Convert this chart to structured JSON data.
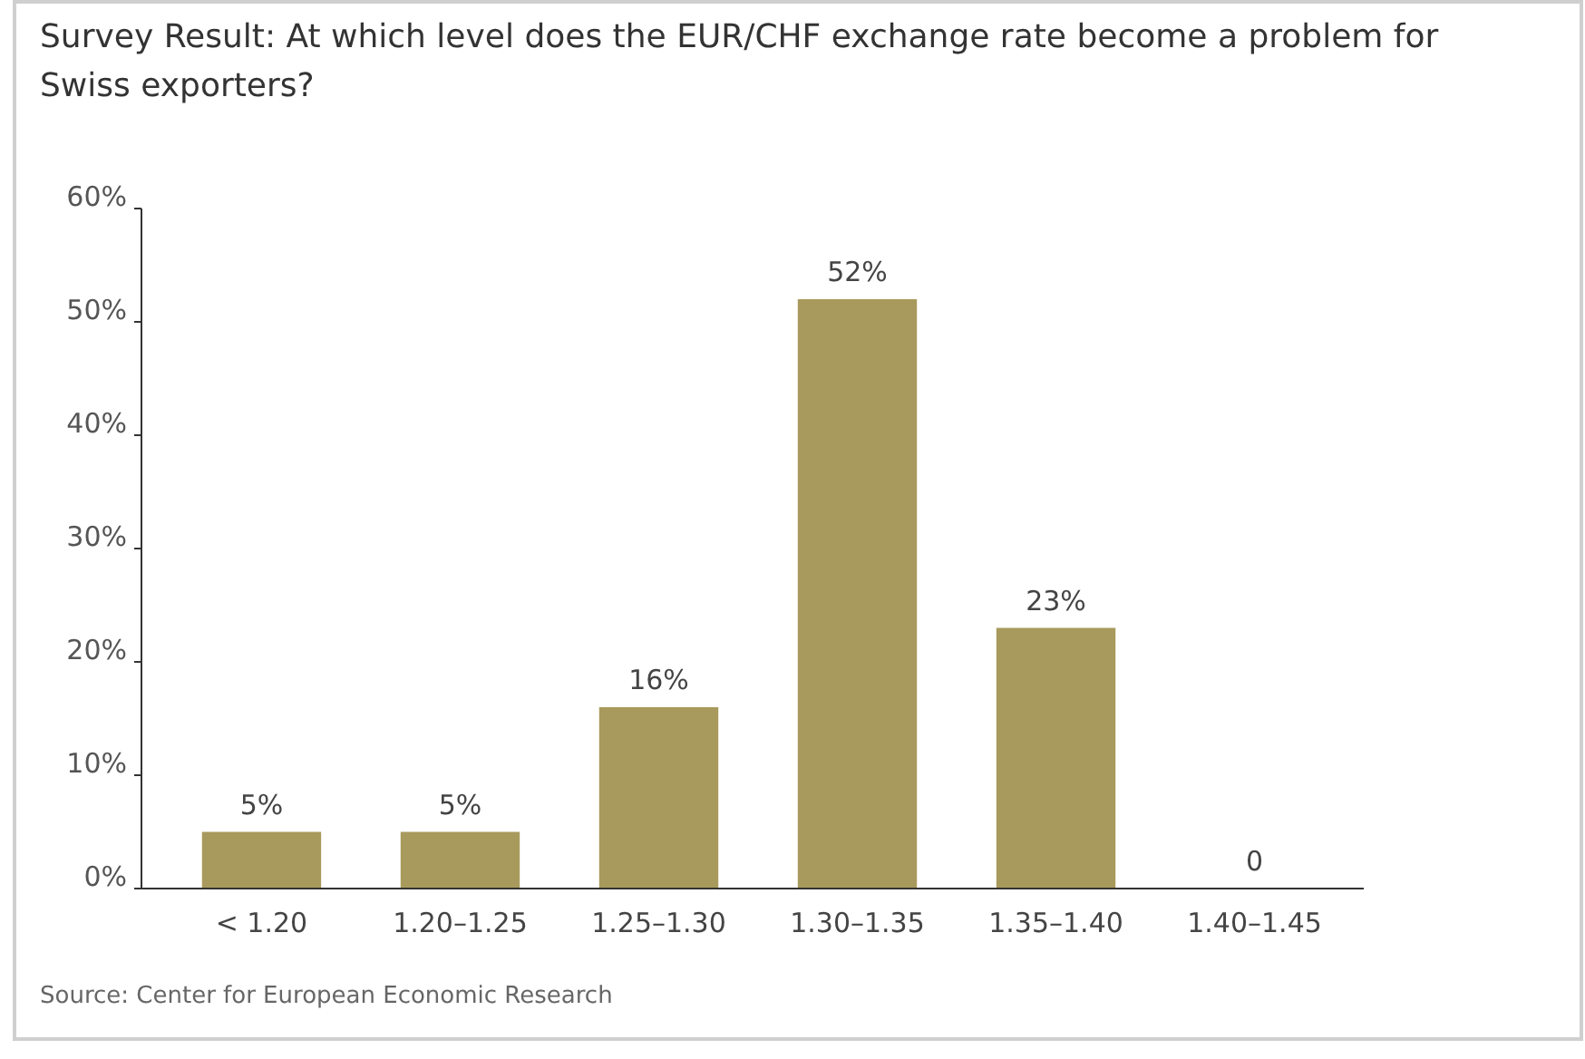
{
  "chart_data": {
    "type": "bar",
    "title": "Survey Result: At which level does the EUR/CHF exchange rate become a problem for Swiss exporters?",
    "categories": [
      "< 1.20",
      "1.20–1.25",
      "1.25–1.30",
      "1.30–1.35",
      "1.35–1.40",
      "1.40–1.45"
    ],
    "values": [
      5,
      5,
      16,
      52,
      23,
      0
    ],
    "color": "#a89a5c",
    "value_labels": [
      "5%",
      "5%",
      "16%",
      "52%",
      "23%",
      "0"
    ],
    "ylim": [
      0,
      60
    ],
    "yticks": [
      {
        "value": 0,
        "label": "0%"
      },
      {
        "value": 10,
        "label": "10%"
      },
      {
        "value": 20,
        "label": "20%"
      },
      {
        "value": 30,
        "label": "30%"
      },
      {
        "value": 40,
        "label": "40%"
      },
      {
        "value": 50,
        "label": "50%"
      },
      {
        "value": 60,
        "label": "60%"
      }
    ],
    "grid": false,
    "annotations": [
      "Source: Center for European Economic Research"
    ]
  }
}
